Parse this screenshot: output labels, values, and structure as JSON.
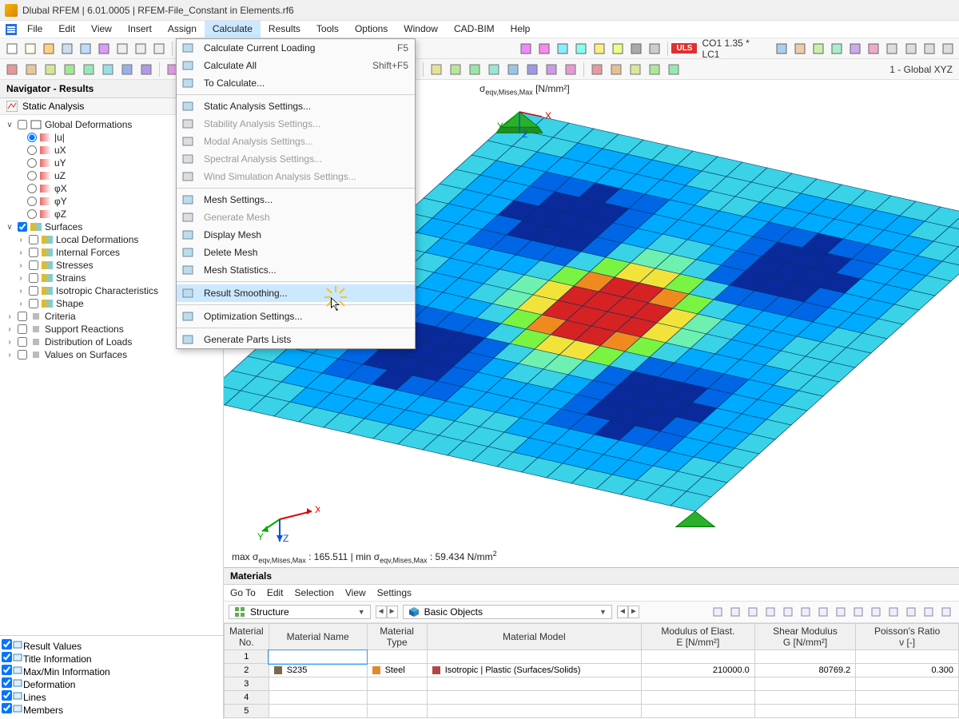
{
  "window": {
    "title": "Dlubal RFEM | 6.01.0005 | RFEM-File_Constant in Elements.rf6"
  },
  "menu": {
    "items": [
      "File",
      "Edit",
      "View",
      "Insert",
      "Assign",
      "Calculate",
      "Results",
      "Tools",
      "Options",
      "Window",
      "CAD-BIM",
      "Help"
    ],
    "active_index": 5
  },
  "toolbar2": {
    "uls": "ULS",
    "combo_label": "CO1   1.35 * LC1",
    "coord_label": "1 - Global XYZ"
  },
  "navigator": {
    "title": "Navigator - Results",
    "subtitle": "Static Analysis",
    "global_def": {
      "label": "Global Deformations",
      "items": [
        "|u|",
        "uX",
        "uY",
        "uZ",
        "φX",
        "φY",
        "φZ"
      ],
      "selected": 0
    },
    "surfaces": {
      "label": "Surfaces",
      "items": [
        "Local Deformations",
        "Internal Forces",
        "Stresses",
        "Strains",
        "Isotropic Characteristics",
        "Shape"
      ]
    },
    "other": [
      "Criteria",
      "Support Reactions",
      "Distribution of Loads",
      "Values on Surfaces"
    ],
    "bottom": [
      "Result Values",
      "Title Information",
      "Max/Min Information",
      "Deformation",
      "Lines",
      "Members"
    ]
  },
  "dropdown": {
    "groups": [
      [
        {
          "label": "Calculate Current Loading",
          "shortcut": "F5",
          "enabled": true
        },
        {
          "label": "Calculate All",
          "shortcut": "Shift+F5",
          "enabled": true
        },
        {
          "label": "To Calculate...",
          "enabled": true
        }
      ],
      [
        {
          "label": "Static Analysis Settings...",
          "enabled": true
        },
        {
          "label": "Stability Analysis Settings...",
          "enabled": false
        },
        {
          "label": "Modal Analysis Settings...",
          "enabled": false
        },
        {
          "label": "Spectral Analysis Settings...",
          "enabled": false
        },
        {
          "label": "Wind Simulation Analysis Settings...",
          "enabled": false
        }
      ],
      [
        {
          "label": "Mesh Settings...",
          "enabled": true
        },
        {
          "label": "Generate Mesh",
          "enabled": false
        },
        {
          "label": "Display Mesh",
          "enabled": true
        },
        {
          "label": "Delete Mesh",
          "enabled": true
        },
        {
          "label": "Mesh Statistics...",
          "enabled": true
        }
      ],
      [
        {
          "label": "Result Smoothing...",
          "enabled": true,
          "highlight": true
        }
      ],
      [
        {
          "label": "Optimization Settings...",
          "enabled": true
        }
      ],
      [
        {
          "label": "Generate Parts Lists",
          "enabled": true
        }
      ]
    ]
  },
  "canvas": {
    "caption_top_prefix": "σ",
    "caption_top_sub": "eqv,Mises,Max",
    "caption_top_unit": " [N/mm²]",
    "caption_bottom": "max σeqv,Mises,Max : 165.511 | min σeqv,Mises,Max : 59.434 N/mm²",
    "axis_labels": {
      "x": "X",
      "y": "Y",
      "z": "Z"
    },
    "mesh": {
      "type": "heatmap",
      "grid": 20,
      "colors": {
        "c0": "#0a2a9c",
        "c1": "#0066e6",
        "c2": "#00aaff",
        "c3": "#39d2e6",
        "c4": "#6ef0b0",
        "c5": "#7af442",
        "c6": "#f2e33a",
        "c7": "#f08a1e",
        "c8": "#d62222"
      },
      "border_color": "#003060",
      "support_color": "#2bb02b"
    }
  },
  "materials": {
    "title": "Materials",
    "menu": [
      "Go To",
      "Edit",
      "Selection",
      "View",
      "Settings"
    ],
    "combo1": "Structure",
    "combo2": "Basic Objects",
    "columns": [
      "Material\nNo.",
      "Material Name",
      "Material\nType",
      "Material Model",
      "Modulus of Elast.\nE [N/mm²]",
      "Shear Modulus\nG [N/mm²]",
      "Poisson's Ratio\nν [-]"
    ],
    "rows": [
      {
        "no": "1",
        "name": "",
        "type": "",
        "model": "",
        "E": "",
        "G": "",
        "nu": ""
      },
      {
        "no": "2",
        "name": "S235",
        "type": "Steel",
        "model": "Isotropic | Plastic (Surfaces/Solids)",
        "E": "210000.0",
        "G": "80769.2",
        "nu": "0.300"
      },
      {
        "no": "3"
      },
      {
        "no": "4"
      },
      {
        "no": "5"
      }
    ]
  }
}
